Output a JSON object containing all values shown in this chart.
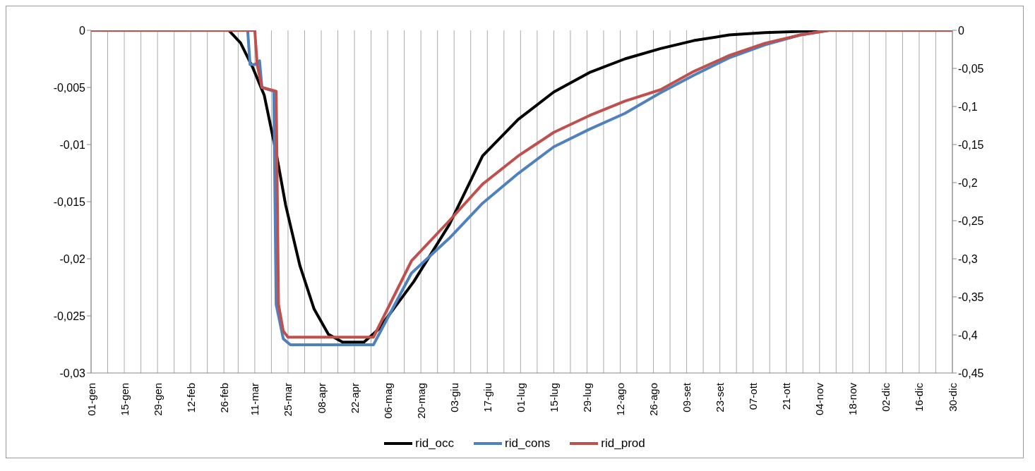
{
  "chart_data": {
    "type": "line",
    "legend": "bottom",
    "grid": "x",
    "line_style": "solid",
    "marker": "none",
    "xlim": [
      "--01-01",
      "--12-30"
    ],
    "xticks": [
      {
        "value": "--01-01",
        "label": "01-gen"
      },
      {
        "value": "--01-08",
        "label": null
      },
      {
        "value": "--01-15",
        "label": "15-gen"
      },
      {
        "value": "--01-22",
        "label": null
      },
      {
        "value": "--01-29",
        "label": "29-gen"
      },
      {
        "value": "--02-05",
        "label": null
      },
      {
        "value": "--02-12",
        "label": "12-feb"
      },
      {
        "value": "--02-19",
        "label": null
      },
      {
        "value": "--02-26",
        "label": "26-feb"
      },
      {
        "value": "--03-04",
        "label": null
      },
      {
        "value": "--03-11",
        "label": "11-mar"
      },
      {
        "value": "--03-18",
        "label": null
      },
      {
        "value": "--03-25",
        "label": "25-mar"
      },
      {
        "value": "--04-01",
        "label": null
      },
      {
        "value": "--04-08",
        "label": "08-apr"
      },
      {
        "value": "--04-15",
        "label": null
      },
      {
        "value": "--04-22",
        "label": "22-apr"
      },
      {
        "value": "--04-29",
        "label": null
      },
      {
        "value": "--05-06",
        "label": "06-mag"
      },
      {
        "value": "--05-13",
        "label": null
      },
      {
        "value": "--05-20",
        "label": "20-mag"
      },
      {
        "value": "--05-27",
        "label": null
      },
      {
        "value": "--06-03",
        "label": "03-giu"
      },
      {
        "value": "--06-10",
        "label": null
      },
      {
        "value": "--06-17",
        "label": "17-giu"
      },
      {
        "value": "--06-24",
        "label": null
      },
      {
        "value": "--07-01",
        "label": "01-lug"
      },
      {
        "value": "--07-08",
        "label": null
      },
      {
        "value": "--07-15",
        "label": "15-lug"
      },
      {
        "value": "--07-22",
        "label": null
      },
      {
        "value": "--07-29",
        "label": "29-lug"
      },
      {
        "value": "--08-05",
        "label": null
      },
      {
        "value": "--08-12",
        "label": "12-ago"
      },
      {
        "value": "--08-19",
        "label": null
      },
      {
        "value": "--08-26",
        "label": "26-ago"
      },
      {
        "value": "--09-02",
        "label": null
      },
      {
        "value": "--09-09",
        "label": "09-set"
      },
      {
        "value": "--09-16",
        "label": null
      },
      {
        "value": "--09-23",
        "label": "23-set"
      },
      {
        "value": "--09-30",
        "label": null
      },
      {
        "value": "--10-07",
        "label": "07-ott"
      },
      {
        "value": "--10-14",
        "label": null
      },
      {
        "value": "--10-21",
        "label": "21-ott"
      },
      {
        "value": "--10-28",
        "label": null
      },
      {
        "value": "--11-04",
        "label": "04-nov"
      },
      {
        "value": "--11-11",
        "label": null
      },
      {
        "value": "--11-18",
        "label": "18-nov"
      },
      {
        "value": "--11-25",
        "label": null
      },
      {
        "value": "--12-02",
        "label": "02-dic"
      },
      {
        "value": "--12-09",
        "label": null
      },
      {
        "value": "--12-16",
        "label": "16-dic"
      },
      {
        "value": "--12-23",
        "label": null
      },
      {
        "value": "--12-30",
        "label": "30-dic"
      }
    ],
    "ylim": [
      -0.03,
      0
    ],
    "yticks": [
      {
        "value": -0.03,
        "label": "-0,03"
      },
      {
        "value": -0.025,
        "label": "-0,025"
      },
      {
        "value": -0.02,
        "label": "-0,02"
      },
      {
        "value": -0.015,
        "label": "-0,015"
      },
      {
        "value": -0.01,
        "label": "-0,01"
      },
      {
        "value": -0.005,
        "label": "-0,005"
      },
      0
    ],
    "y2lim": [
      -0.45,
      0
    ],
    "y2ticks": [
      {
        "value": -0.45,
        "label": "-0,45"
      },
      {
        "value": -0.4,
        "label": "-0,4"
      },
      {
        "value": -0.35,
        "label": "-0,35"
      },
      {
        "value": -0.3,
        "label": "-0,3"
      },
      {
        "value": -0.25,
        "label": "-0,25"
      },
      {
        "value": -0.2,
        "label": "-0,2"
      },
      {
        "value": -0.15,
        "label": "-0,15"
      },
      {
        "value": -0.1,
        "label": "-0,1"
      },
      {
        "value": -0.05,
        "label": "-0,05"
      },
      0
    ],
    "series": [
      {
        "name": "rid_occ",
        "color": "#000000",
        "axis": "y",
        "x": [
          "--01-01",
          "--02-28",
          "--03-05",
          "--03-10",
          "--03-15",
          "--03-20",
          "--03-24",
          "--03-30",
          "--04-05",
          "--04-11",
          "--04-17",
          "--04-26",
          "--05-02",
          "--05-17",
          "--06-01",
          "--06-15",
          "--06-30",
          "--07-15",
          "--07-30",
          "--08-14",
          "--08-29",
          "--09-12",
          "--09-27",
          "--10-12",
          "--10-27",
          "--11-08",
          "--12-30"
        ],
        "values": [
          0,
          0,
          -0.0011,
          -0.0032,
          -0.0057,
          -0.0107,
          -0.0153,
          -0.0206,
          -0.0244,
          -0.0266,
          -0.0273,
          -0.0273,
          -0.0262,
          -0.022,
          -0.017,
          -0.011,
          -0.0078,
          -0.0054,
          -0.0037,
          -0.0025,
          -0.0016,
          -0.0009,
          -0.0004,
          -0.0002,
          -0.0001,
          0,
          0
        ]
      },
      {
        "name": "rid_cons",
        "color": "#4f81bd",
        "axis": "y2",
        "x": [
          "--01-01",
          "--03-08",
          "--03-09",
          "--03-11",
          "--03-13",
          "--03-14",
          "--03-19",
          "--03-20",
          "--03-23",
          "--03-26",
          "--04-30",
          "--05-16",
          "--06-01",
          "--06-15",
          "--06-30",
          "--07-15",
          "--07-30",
          "--08-14",
          "--08-29",
          "--09-12",
          "--09-27",
          "--10-12",
          "--10-27",
          "--11-08",
          "--12-30"
        ],
        "values": [
          0,
          0,
          -0.045,
          -0.045,
          -0.04,
          -0.075,
          -0.08,
          -0.36,
          -0.405,
          -0.413,
          -0.413,
          -0.319,
          -0.273,
          -0.227,
          -0.188,
          -0.153,
          -0.13,
          -0.109,
          -0.082,
          -0.059,
          -0.036,
          -0.019,
          -0.006,
          0,
          0
        ]
      },
      {
        "name": "rid_prod",
        "color": "#c0504d",
        "axis": "y2",
        "x": [
          "--01-01",
          "--03-11",
          "--03-12",
          "--03-14",
          "--03-20",
          "--03-21",
          "--03-23",
          "--03-25",
          "--04-30",
          "--05-16",
          "--06-01",
          "--06-15",
          "--06-30",
          "--07-15",
          "--07-30",
          "--08-14",
          "--08-29",
          "--09-12",
          "--09-27",
          "--10-12",
          "--10-27",
          "--11-08",
          "--12-30"
        ],
        "values": [
          0,
          0,
          -0.045,
          -0.075,
          -0.08,
          -0.36,
          -0.395,
          -0.403,
          -0.403,
          -0.303,
          -0.25,
          -0.202,
          -0.165,
          -0.134,
          -0.112,
          -0.093,
          -0.078,
          -0.054,
          -0.033,
          -0.017,
          -0.006,
          0,
          0
        ]
      }
    ]
  }
}
